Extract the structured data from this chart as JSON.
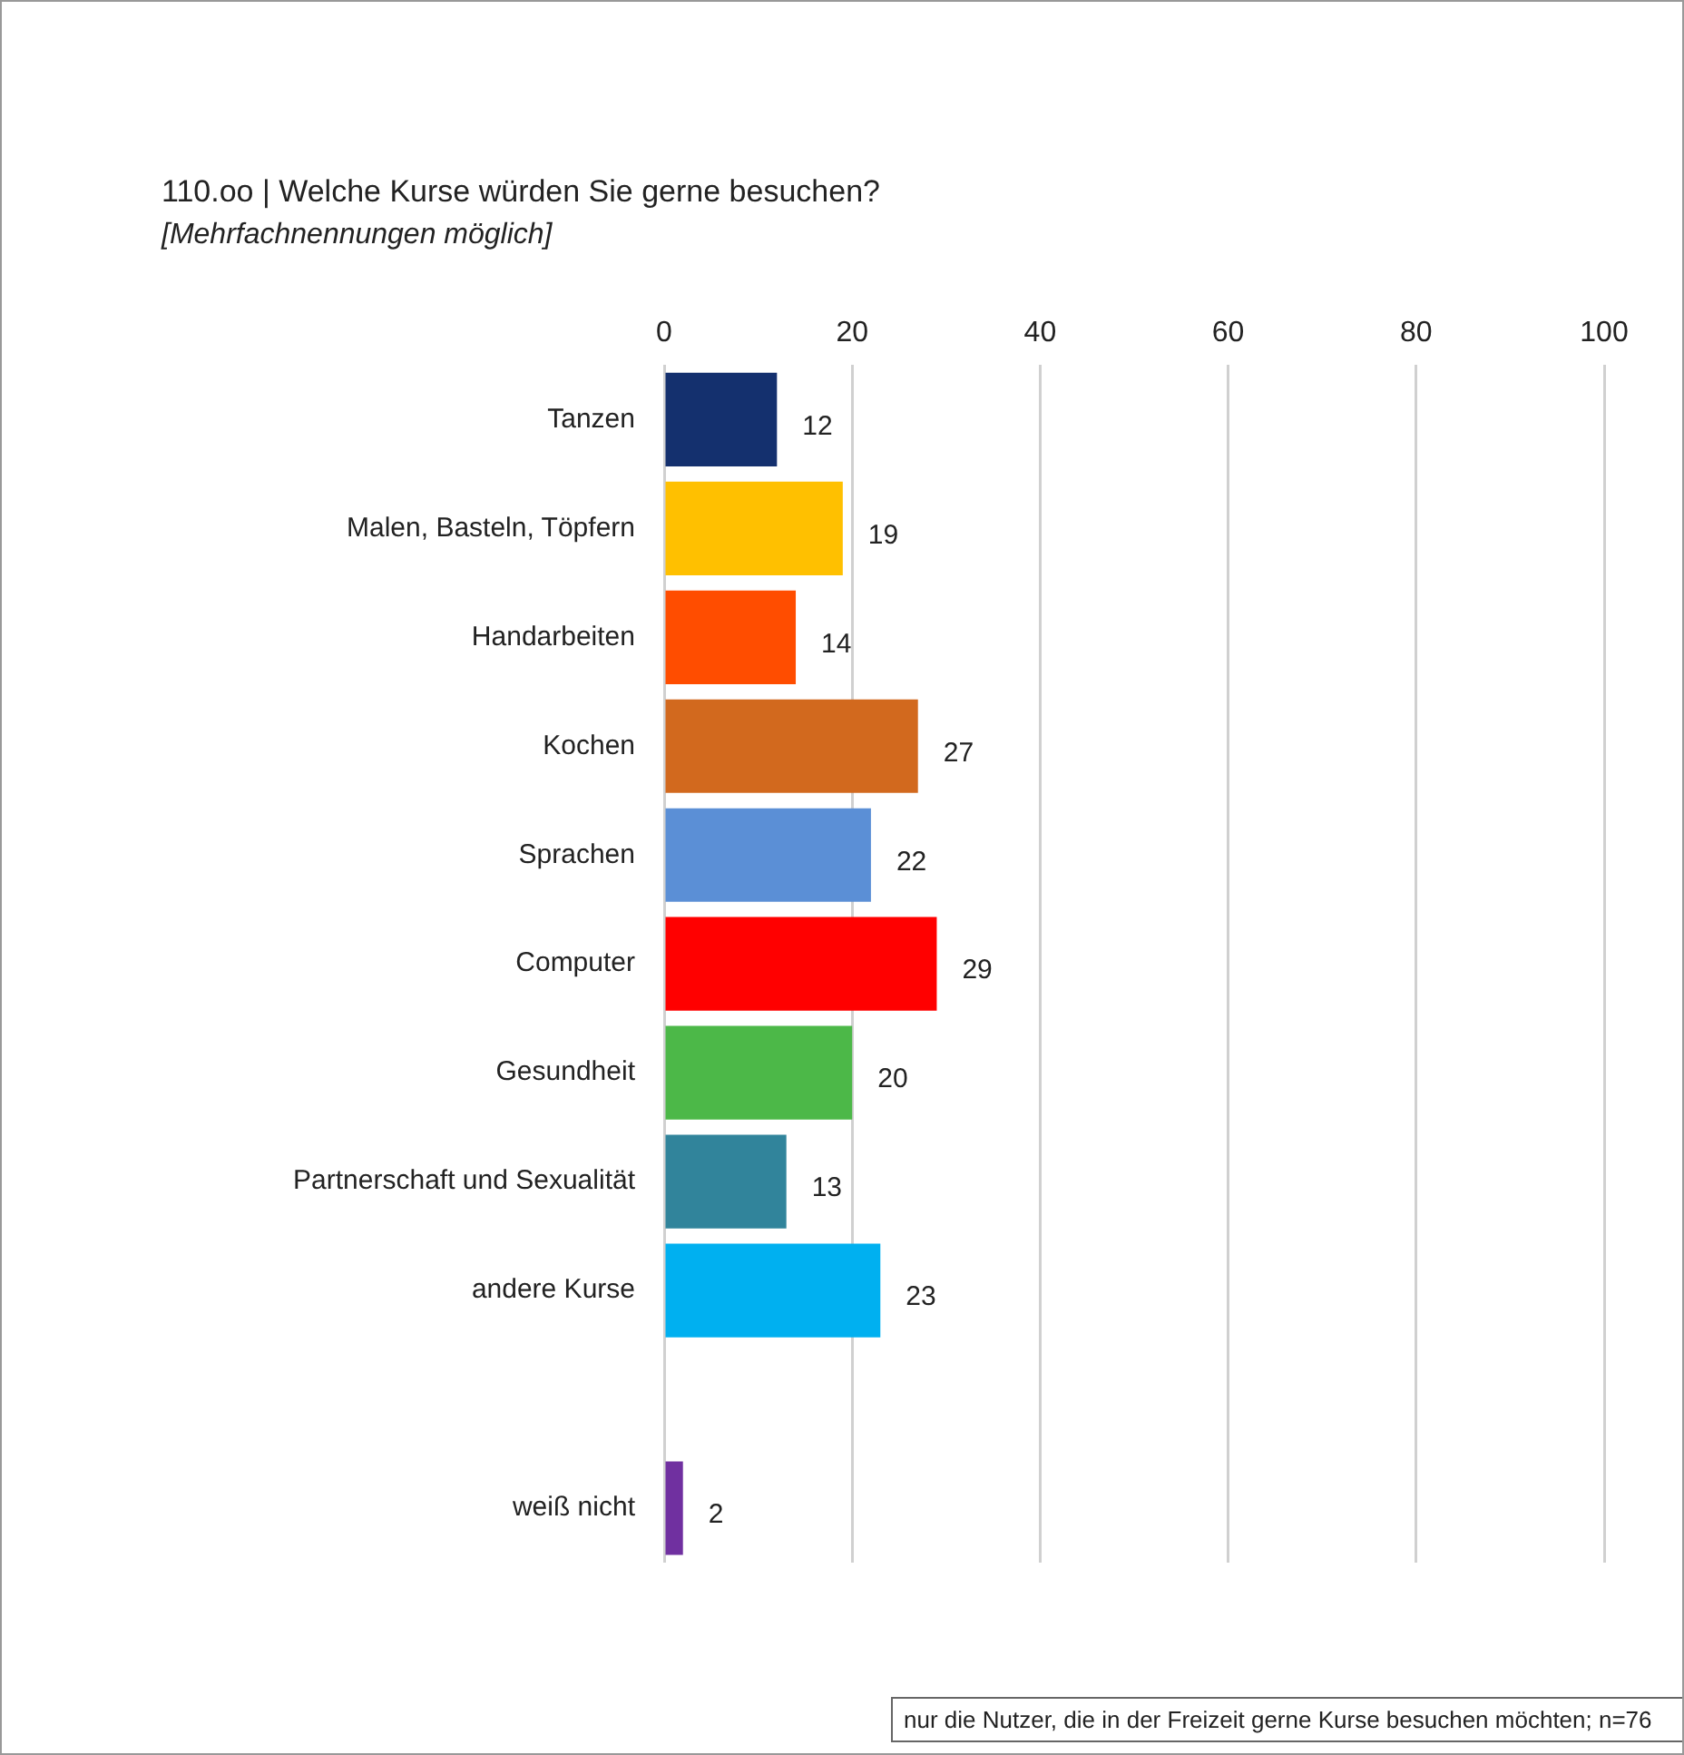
{
  "chart_data": {
    "type": "bar",
    "orientation": "horizontal",
    "title": "110.oo | Welche Kurse würden Sie gerne besuchen?",
    "subtitle": "[Mehrfachnennungen möglich]",
    "categories": [
      "Tanzen",
      "Malen, Basteln, Töpfern",
      "Handarbeiten",
      "Kochen",
      "Sprachen",
      "Computer",
      "Gesundheit",
      "Partnerschaft und Sexualität",
      "andere Kurse",
      null,
      "weiß nicht"
    ],
    "values": [
      12,
      19,
      14,
      27,
      22,
      29,
      20,
      13,
      23,
      null,
      2
    ],
    "colors": [
      "#14306e",
      "#ffc000",
      "#ff4d00",
      "#d2691e",
      "#5b8fd6",
      "#ff0000",
      "#4cb848",
      "#31849b",
      "#00b0f0",
      "#ffffff",
      "#7030a0"
    ],
    "xlim": [
      0,
      100
    ],
    "xticks": [
      0,
      20,
      40,
      60,
      80,
      100
    ],
    "grid": "x",
    "legend": false,
    "data_labels": true,
    "annotations": [
      "nur die Nutzer, die in der Freizeit gerne Kurse besuchen möchten; n=76"
    ]
  }
}
